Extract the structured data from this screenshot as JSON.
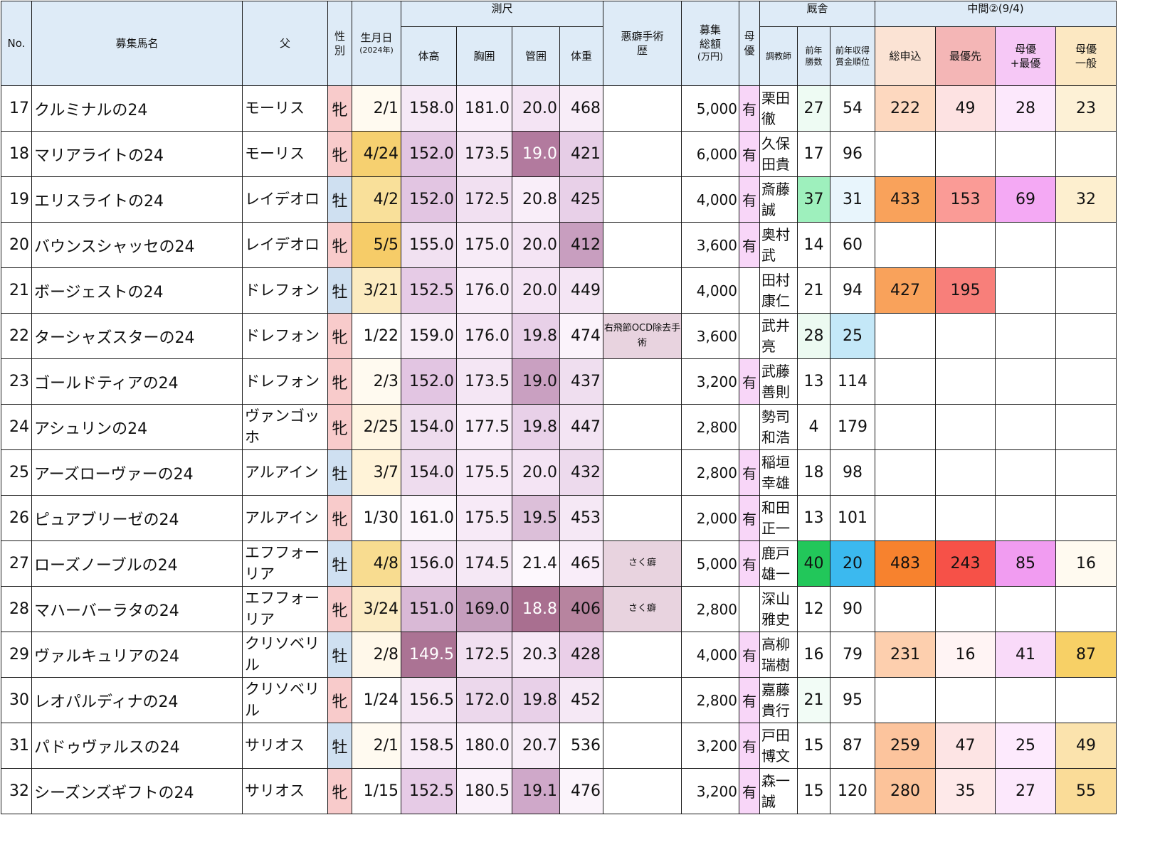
{
  "header": {
    "no": "No.",
    "name": "募集馬名",
    "sire": "父",
    "sex": "性別",
    "birth": "生月日",
    "birth_sub": "(2024年)",
    "measure": "測尺",
    "height": "体高",
    "chest": "胸囲",
    "cannon": "管囲",
    "weight": "体重",
    "vice": "悪癖手術歴",
    "price": "募集総額",
    "price_sub": "(万円)",
    "boyu": "母優",
    "stable": "厩舎",
    "trainer": "調教師",
    "prev_wins": "前年勝数",
    "prev_rank": "前年収得賞金順位",
    "interim": "中間②(9/4)",
    "total": "総申込",
    "priority": "最優先",
    "boyu_priority": "母優+最優",
    "boyu_general": "母優一般"
  },
  "colors": {
    "header_blue": "#deebf7",
    "filly": "#f8cbcb",
    "colt": "#cfe0f1",
    "measure_scale": [
      "#faeefa",
      "#f3e2f3",
      "#e6cde6",
      "#d9b9d6",
      "#c495bd",
      "#a9708f"
    ]
  },
  "rows": [
    {
      "no": "17",
      "name": "クルミナルの24",
      "sire": "モーリス",
      "sex": "牝",
      "birth": "2/1",
      "height": "158.0",
      "chest": "181.0",
      "cannon": "20.0",
      "weight": "468",
      "vice": "",
      "price": "5,000",
      "boyu": "有",
      "trainer": "栗田徹",
      "wins": "27",
      "rank": "54",
      "total": "222",
      "priority": "49",
      "boyu_priority": "28",
      "boyu_general": "23",
      "c": {
        "birth": "#fffaf0",
        "height": "#f6e9f6",
        "chest": "#faf0fa",
        "cannon": "#f4e4f4",
        "weight": "#f8edf8",
        "wins": "#eefbf3",
        "rank": "#ffffff",
        "total": "#fdd8bf",
        "priority": "#fde2e2",
        "boyu_priority": "#fce8fc",
        "boyu_general": "#fdf1d6"
      }
    },
    {
      "no": "18",
      "name": "マリアライトの24",
      "sire": "モーリス",
      "sex": "牝",
      "birth": "4/24",
      "height": "152.0",
      "chest": "173.5",
      "cannon": "19.0",
      "weight": "421",
      "vice": "",
      "price": "6,000",
      "boyu": "有",
      "trainer": "久保田貴",
      "wins": "17",
      "rank": "96",
      "total": "",
      "priority": "",
      "boyu_priority": "",
      "boyu_general": "",
      "c": {
        "birth": "#f6d070",
        "height": "#e2c5e2",
        "chest": "#f4e6f4",
        "cannon": "#b27a9e",
        "weight": "#e6cde6",
        "wins": "#ffffff",
        "rank": "#ffffff",
        "total": "#ffffff",
        "priority": "#ffffff",
        "boyu_priority": "#ffffff",
        "boyu_general": "#ffffff"
      }
    },
    {
      "no": "19",
      "name": "エリスライトの24",
      "sire": "レイデオロ",
      "sex": "牡",
      "birth": "4/2",
      "height": "152.0",
      "chest": "172.5",
      "cannon": "20.8",
      "weight": "425",
      "vice": "",
      "price": "4,000",
      "boyu": "有",
      "trainer": "斎藤誠",
      "wins": "37",
      "rank": "31",
      "total": "433",
      "priority": "153",
      "boyu_priority": "69",
      "boyu_general": "32",
      "c": {
        "birth": "#f9e09a",
        "height": "#e2c5e2",
        "chest": "#f1e0f1",
        "cannon": "#f9eef9",
        "weight": "#e8d0e8",
        "wins": "#9ef0bd",
        "rank": "#e8f5fc",
        "total": "#f9a25b",
        "priority": "#fa9b96",
        "boyu_priority": "#f4a9f4",
        "boyu_general": "#fdefcf"
      }
    },
    {
      "no": "20",
      "name": "バウンスシャッセの24",
      "sire": "レイデオロ",
      "sex": "牝",
      "birth": "5/5",
      "height": "155.0",
      "chest": "175.0",
      "cannon": "20.0",
      "weight": "412",
      "vice": "",
      "price": "3,600",
      "boyu": "有",
      "trainer": "奥村武",
      "wins": "14",
      "rank": "60",
      "total": "",
      "priority": "",
      "boyu_priority": "",
      "boyu_general": "",
      "c": {
        "birth": "#f6cc68",
        "height": "#f1e1f1",
        "chest": "#f7ebf7",
        "cannon": "#f4e4f4",
        "weight": "#c89ebf",
        "wins": "#ffffff",
        "rank": "#ffffff",
        "total": "#ffffff",
        "priority": "#ffffff",
        "boyu_priority": "#ffffff",
        "boyu_general": "#ffffff"
      }
    },
    {
      "no": "21",
      "name": "ボージェストの24",
      "sire": "ドレフォン",
      "sex": "牡",
      "birth": "3/21",
      "height": "152.5",
      "chest": "176.0",
      "cannon": "20.0",
      "weight": "449",
      "vice": "",
      "price": "4,000",
      "boyu": "",
      "trainer": "田村康仁",
      "wins": "21",
      "rank": "94",
      "total": "427",
      "priority": "195",
      "boyu_priority": "",
      "boyu_general": "",
      "c": {
        "birth": "#fcebc0",
        "height": "#e6cbe6",
        "chest": "#f8ecf8",
        "cannon": "#f4e4f4",
        "weight": "#f4e5f4",
        "wins": "#ffffff",
        "rank": "#ffffff",
        "total": "#f9a25b",
        "priority": "#f87f7a",
        "boyu_priority": "#ffffff",
        "boyu_general": "#ffffff"
      }
    },
    {
      "no": "22",
      "name": "ターシャズスターの24",
      "sire": "ドレフォン",
      "sex": "牝",
      "birth": "1/22",
      "height": "159.0",
      "chest": "176.0",
      "cannon": "19.8",
      "weight": "474",
      "vice": "右飛節OCD除去手術",
      "price": "3,600",
      "boyu": "",
      "trainer": "武井亮",
      "wins": "28",
      "rank": "25",
      "total": "",
      "priority": "",
      "boyu_priority": "",
      "boyu_general": "",
      "c": {
        "birth": "#ffffff",
        "height": "#f8eef8",
        "chest": "#f8ecf8",
        "cannon": "#e8d0e8",
        "weight": "#fbf3fb",
        "wins": "#ecfaf1",
        "rank": "#c4e8f8",
        "total": "#ffffff",
        "priority": "#ffffff",
        "boyu_priority": "#ffffff",
        "boyu_general": "#ffffff"
      }
    },
    {
      "no": "23",
      "name": "ゴールドティアの24",
      "sire": "ドレフォン",
      "sex": "牝",
      "birth": "2/3",
      "height": "152.0",
      "chest": "173.5",
      "cannon": "19.0",
      "weight": "437",
      "vice": "",
      "price": "3,200",
      "boyu": "有",
      "trainer": "武藤善則",
      "wins": "13",
      "rank": "114",
      "total": "",
      "priority": "",
      "boyu_priority": "",
      "boyu_general": "",
      "c": {
        "birth": "#fffaf0",
        "height": "#e2c5e2",
        "chest": "#f4e6f4",
        "cannon": "#c9a0c1",
        "weight": "#efdeef",
        "wins": "#ffffff",
        "rank": "#ffffff",
        "total": "#ffffff",
        "priority": "#ffffff",
        "boyu_priority": "#ffffff",
        "boyu_general": "#ffffff"
      }
    },
    {
      "no": "24",
      "name": "アシュリンの24",
      "sire": "ヴァンゴッホ",
      "sex": "牝",
      "birth": "2/25",
      "height": "154.0",
      "chest": "177.5",
      "cannon": "19.8",
      "weight": "447",
      "vice": "",
      "price": "2,800",
      "boyu": "",
      "trainer": "勢司和浩",
      "wins": "4",
      "rank": "179",
      "total": "",
      "priority": "",
      "boyu_priority": "",
      "boyu_general": "",
      "c": {
        "birth": "#fff6e3",
        "height": "#eedcee",
        "chest": "#f9eef9",
        "cannon": "#e8d0e8",
        "weight": "#f3e4f3",
        "wins": "#ffffff",
        "rank": "#ffffff",
        "total": "#ffffff",
        "priority": "#ffffff",
        "boyu_priority": "#ffffff",
        "boyu_general": "#ffffff"
      }
    },
    {
      "no": "25",
      "name": "アーズローヴァーの24",
      "sire": "アルアイン",
      "sex": "牡",
      "birth": "3/7",
      "height": "154.0",
      "chest": "175.5",
      "cannon": "20.0",
      "weight": "432",
      "vice": "",
      "price": "2,800",
      "boyu": "有",
      "trainer": "稲垣幸雄",
      "wins": "18",
      "rank": "98",
      "total": "",
      "priority": "",
      "boyu_priority": "",
      "boyu_general": "",
      "c": {
        "birth": "#fff3d8",
        "height": "#eedcee",
        "chest": "#f7eaf7",
        "cannon": "#f4e4f4",
        "weight": "#eddaed",
        "wins": "#ffffff",
        "rank": "#ffffff",
        "total": "#ffffff",
        "priority": "#ffffff",
        "boyu_priority": "#ffffff",
        "boyu_general": "#ffffff"
      }
    },
    {
      "no": "26",
      "name": "ピュアブリーゼの24",
      "sire": "アルアイン",
      "sex": "牝",
      "birth": "1/30",
      "height": "161.0",
      "chest": "175.5",
      "cannon": "19.5",
      "weight": "453",
      "vice": "",
      "price": "2,000",
      "boyu": "有",
      "trainer": "和田正一",
      "wins": "13",
      "rank": "101",
      "total": "",
      "priority": "",
      "boyu_priority": "",
      "boyu_general": "",
      "c": {
        "birth": "#ffffff",
        "height": "#fcf6fc",
        "chest": "#f7eaf7",
        "cannon": "#dcbfd9",
        "weight": "#f5e8f5",
        "wins": "#ffffff",
        "rank": "#ffffff",
        "total": "#ffffff",
        "priority": "#ffffff",
        "boyu_priority": "#ffffff",
        "boyu_general": "#ffffff"
      }
    },
    {
      "no": "27",
      "name": "ローズノーブルの24",
      "sire": "エフフォーリア",
      "sex": "牡",
      "birth": "4/8",
      "height": "156.0",
      "chest": "174.5",
      "cannon": "21.4",
      "weight": "465",
      "vice": "さく癖",
      "price": "5,000",
      "boyu": "有",
      "trainer": "鹿戸雄一",
      "wins": "40",
      "rank": "20",
      "total": "483",
      "priority": "243",
      "boyu_priority": "85",
      "boyu_general": "16",
      "c": {
        "birth": "#f8dc90",
        "height": "#f4e5f4",
        "chest": "#f5e8f5",
        "cannon": "#fdf8fd",
        "weight": "#f9edf9",
        "wins": "#22c75a",
        "rank": "#3bb9ef",
        "total": "#f7822e",
        "priority": "#f65148",
        "boyu_priority": "#f19cf1",
        "boyu_general": "#fffaf0"
      }
    },
    {
      "no": "28",
      "name": "マハーバーラタの24",
      "sire": "エフフォーリア",
      "sex": "牝",
      "birth": "3/24",
      "height": "151.0",
      "chest": "169.0",
      "cannon": "18.8",
      "weight": "406",
      "vice": "さく癖",
      "price": "2,800",
      "boyu": "",
      "trainer": "深山雅史",
      "wins": "12",
      "rank": "90",
      "total": "",
      "priority": "",
      "boyu_priority": "",
      "boyu_general": "",
      "c": {
        "birth": "#fcecc4",
        "height": "#d9b9d6",
        "chest": "#c59ebd",
        "cannon": "#a96f90",
        "weight": "#b7849f",
        "wins": "#ffffff",
        "rank": "#ffffff",
        "total": "#ffffff",
        "priority": "#ffffff",
        "boyu_priority": "#ffffff",
        "boyu_general": "#ffffff"
      }
    },
    {
      "no": "29",
      "name": "ヴァルキュリアの24",
      "sire": "クリソベリル",
      "sex": "牡",
      "birth": "2/8",
      "height": "149.5",
      "chest": "172.5",
      "cannon": "20.3",
      "weight": "428",
      "vice": "",
      "price": "4,000",
      "boyu": "有",
      "trainer": "高柳瑞樹",
      "wins": "16",
      "rank": "79",
      "total": "231",
      "priority": "16",
      "boyu_priority": "41",
      "boyu_general": "87",
      "c": {
        "birth": "#fff8ea",
        "height": "#ab7394",
        "chest": "#f1e0f1",
        "cannon": "#f6e9f6",
        "weight": "#eacfe8",
        "wins": "#ffffff",
        "rank": "#ffffff",
        "total": "#fdcfae",
        "priority": "#fff4f4",
        "boyu_priority": "#f9daf9",
        "boyu_general": "#f7d066"
      }
    },
    {
      "no": "30",
      "name": "レオパルディナの24",
      "sire": "クリソベリル",
      "sex": "牝",
      "birth": "1/24",
      "height": "156.5",
      "chest": "172.0",
      "cannon": "19.8",
      "weight": "452",
      "vice": "",
      "price": "2,800",
      "boyu": "有",
      "trainer": "嘉藤貴行",
      "wins": "21",
      "rank": "95",
      "total": "",
      "priority": "",
      "boyu_priority": "",
      "boyu_general": "",
      "c": {
        "birth": "#ffffff",
        "height": "#f5e7f5",
        "chest": "#ecd8ec",
        "cannon": "#e8d0e8",
        "weight": "#f5e8f5",
        "wins": "#f2fcf6",
        "rank": "#ffffff",
        "total": "#ffffff",
        "priority": "#ffffff",
        "boyu_priority": "#ffffff",
        "boyu_general": "#ffffff"
      }
    },
    {
      "no": "31",
      "name": "パドゥヴァルスの24",
      "sire": "サリオス",
      "sex": "牡",
      "birth": "2/1",
      "height": "158.5",
      "chest": "180.0",
      "cannon": "20.7",
      "weight": "536",
      "vice": "",
      "price": "3,200",
      "boyu": "有",
      "trainer": "戸田博文",
      "wins": "15",
      "rank": "87",
      "total": "259",
      "priority": "47",
      "boyu_priority": "25",
      "boyu_general": "49",
      "c": {
        "birth": "#fffaf0",
        "height": "#f7ebf7",
        "chest": "#faf1fa",
        "cannon": "#f8edf8",
        "weight": "#ffffff",
        "wins": "#ffffff",
        "rank": "#ffffff",
        "total": "#fcc49d",
        "priority": "#fde4e4",
        "boyu_priority": "#fdeafd",
        "boyu_general": "#fbe3ad"
      }
    },
    {
      "no": "32",
      "name": "シーズンズギフトの24",
      "sire": "サリオス",
      "sex": "牝",
      "birth": "1/15",
      "height": "152.5",
      "chest": "180.5",
      "cannon": "19.1",
      "weight": "476",
      "vice": "",
      "price": "3,200",
      "boyu": "有",
      "trainer": "森一誠",
      "wins": "15",
      "rank": "120",
      "total": "280",
      "priority": "35",
      "boyu_priority": "27",
      "boyu_general": "55",
      "c": {
        "birth": "#ffffff",
        "height": "#e6cbe6",
        "chest": "#faf1fa",
        "cannon": "#cfa8c9",
        "weight": "#fbf4fb",
        "wins": "#ffffff",
        "rank": "#ffffff",
        "total": "#fcc39a",
        "priority": "#fee9e9",
        "boyu_priority": "#fce8fc",
        "boyu_general": "#fadc98"
      }
    }
  ]
}
